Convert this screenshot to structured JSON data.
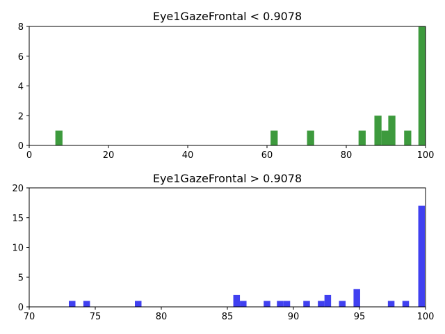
{
  "chart_data": [
    {
      "type": "bar",
      "title": "Eye1GazeFrontal < 0.9078",
      "xlabel": "",
      "ylabel": "",
      "xlim": [
        0,
        100
      ],
      "ylim": [
        0,
        8
      ],
      "xticks": [
        "0",
        "20",
        "40",
        "60",
        "80",
        "100"
      ],
      "yticks": [
        "0",
        "2",
        "4",
        "6",
        "8"
      ],
      "bin_width": 1.8,
      "color": "#3d9a3d",
      "bars": [
        {
          "x": 7.5,
          "value": 1
        },
        {
          "x": 61.8,
          "value": 1
        },
        {
          "x": 71.0,
          "value": 1
        },
        {
          "x": 84.0,
          "value": 1
        },
        {
          "x": 88.0,
          "value": 2
        },
        {
          "x": 89.8,
          "value": 1
        },
        {
          "x": 91.5,
          "value": 2
        },
        {
          "x": 95.5,
          "value": 1
        },
        {
          "x": 99.1,
          "value": 8
        }
      ]
    },
    {
      "type": "bar",
      "title": "Eye1GazeFrontal > 0.9078",
      "xlabel": "",
      "ylabel": "",
      "xlim": [
        70,
        100
      ],
      "ylim": [
        0,
        20
      ],
      "xticks": [
        "70",
        "75",
        "80",
        "85",
        "90",
        "95",
        "100"
      ],
      "yticks": [
        "0",
        "5",
        "10",
        "15",
        "20"
      ],
      "bin_width": 0.5,
      "color": "#4040f0",
      "bars": [
        {
          "x": 73.25,
          "value": 1
        },
        {
          "x": 74.35,
          "value": 1
        },
        {
          "x": 78.25,
          "value": 1
        },
        {
          "x": 85.7,
          "value": 2
        },
        {
          "x": 86.2,
          "value": 1
        },
        {
          "x": 88.0,
          "value": 1
        },
        {
          "x": 89.0,
          "value": 1
        },
        {
          "x": 89.5,
          "value": 1
        },
        {
          "x": 91.0,
          "value": 1
        },
        {
          "x": 92.1,
          "value": 1
        },
        {
          "x": 92.6,
          "value": 2
        },
        {
          "x": 93.7,
          "value": 1
        },
        {
          "x": 94.8,
          "value": 3
        },
        {
          "x": 97.4,
          "value": 1
        },
        {
          "x": 98.5,
          "value": 1
        },
        {
          "x": 99.7,
          "value": 17
        }
      ]
    }
  ]
}
